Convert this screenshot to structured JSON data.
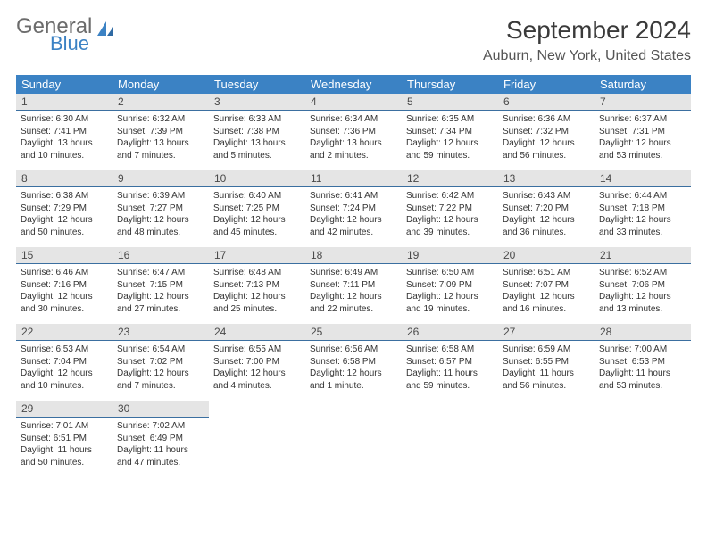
{
  "brand": {
    "part1": "General",
    "part2": "Blue",
    "text_color": "#6b6b6b",
    "accent_color": "#3b82c4"
  },
  "title": "September 2024",
  "location": "Auburn, New York, United States",
  "colors": {
    "header_bg": "#3b82c4",
    "header_text": "#ffffff",
    "daynum_bg": "#e5e5e5",
    "daynum_border": "#3b6fa0",
    "body_bg": "#ffffff"
  },
  "weekdays": [
    "Sunday",
    "Monday",
    "Tuesday",
    "Wednesday",
    "Thursday",
    "Friday",
    "Saturday"
  ],
  "weeks": [
    [
      {
        "n": "1",
        "sr": "6:30 AM",
        "ss": "7:41 PM",
        "dl": "13 hours and 10 minutes."
      },
      {
        "n": "2",
        "sr": "6:32 AM",
        "ss": "7:39 PM",
        "dl": "13 hours and 7 minutes."
      },
      {
        "n": "3",
        "sr": "6:33 AM",
        "ss": "7:38 PM",
        "dl": "13 hours and 5 minutes."
      },
      {
        "n": "4",
        "sr": "6:34 AM",
        "ss": "7:36 PM",
        "dl": "13 hours and 2 minutes."
      },
      {
        "n": "5",
        "sr": "6:35 AM",
        "ss": "7:34 PM",
        "dl": "12 hours and 59 minutes."
      },
      {
        "n": "6",
        "sr": "6:36 AM",
        "ss": "7:32 PM",
        "dl": "12 hours and 56 minutes."
      },
      {
        "n": "7",
        "sr": "6:37 AM",
        "ss": "7:31 PM",
        "dl": "12 hours and 53 minutes."
      }
    ],
    [
      {
        "n": "8",
        "sr": "6:38 AM",
        "ss": "7:29 PM",
        "dl": "12 hours and 50 minutes."
      },
      {
        "n": "9",
        "sr": "6:39 AM",
        "ss": "7:27 PM",
        "dl": "12 hours and 48 minutes."
      },
      {
        "n": "10",
        "sr": "6:40 AM",
        "ss": "7:25 PM",
        "dl": "12 hours and 45 minutes."
      },
      {
        "n": "11",
        "sr": "6:41 AM",
        "ss": "7:24 PM",
        "dl": "12 hours and 42 minutes."
      },
      {
        "n": "12",
        "sr": "6:42 AM",
        "ss": "7:22 PM",
        "dl": "12 hours and 39 minutes."
      },
      {
        "n": "13",
        "sr": "6:43 AM",
        "ss": "7:20 PM",
        "dl": "12 hours and 36 minutes."
      },
      {
        "n": "14",
        "sr": "6:44 AM",
        "ss": "7:18 PM",
        "dl": "12 hours and 33 minutes."
      }
    ],
    [
      {
        "n": "15",
        "sr": "6:46 AM",
        "ss": "7:16 PM",
        "dl": "12 hours and 30 minutes."
      },
      {
        "n": "16",
        "sr": "6:47 AM",
        "ss": "7:15 PM",
        "dl": "12 hours and 27 minutes."
      },
      {
        "n": "17",
        "sr": "6:48 AM",
        "ss": "7:13 PM",
        "dl": "12 hours and 25 minutes."
      },
      {
        "n": "18",
        "sr": "6:49 AM",
        "ss": "7:11 PM",
        "dl": "12 hours and 22 minutes."
      },
      {
        "n": "19",
        "sr": "6:50 AM",
        "ss": "7:09 PM",
        "dl": "12 hours and 19 minutes."
      },
      {
        "n": "20",
        "sr": "6:51 AM",
        "ss": "7:07 PM",
        "dl": "12 hours and 16 minutes."
      },
      {
        "n": "21",
        "sr": "6:52 AM",
        "ss": "7:06 PM",
        "dl": "12 hours and 13 minutes."
      }
    ],
    [
      {
        "n": "22",
        "sr": "6:53 AM",
        "ss": "7:04 PM",
        "dl": "12 hours and 10 minutes."
      },
      {
        "n": "23",
        "sr": "6:54 AM",
        "ss": "7:02 PM",
        "dl": "12 hours and 7 minutes."
      },
      {
        "n": "24",
        "sr": "6:55 AM",
        "ss": "7:00 PM",
        "dl": "12 hours and 4 minutes."
      },
      {
        "n": "25",
        "sr": "6:56 AM",
        "ss": "6:58 PM",
        "dl": "12 hours and 1 minute."
      },
      {
        "n": "26",
        "sr": "6:58 AM",
        "ss": "6:57 PM",
        "dl": "11 hours and 59 minutes."
      },
      {
        "n": "27",
        "sr": "6:59 AM",
        "ss": "6:55 PM",
        "dl": "11 hours and 56 minutes."
      },
      {
        "n": "28",
        "sr": "7:00 AM",
        "ss": "6:53 PM",
        "dl": "11 hours and 53 minutes."
      }
    ],
    [
      {
        "n": "29",
        "sr": "7:01 AM",
        "ss": "6:51 PM",
        "dl": "11 hours and 50 minutes."
      },
      {
        "n": "30",
        "sr": "7:02 AM",
        "ss": "6:49 PM",
        "dl": "11 hours and 47 minutes."
      },
      null,
      null,
      null,
      null,
      null
    ]
  ],
  "labels": {
    "sunrise": "Sunrise: ",
    "sunset": "Sunset: ",
    "daylight": "Daylight: "
  }
}
